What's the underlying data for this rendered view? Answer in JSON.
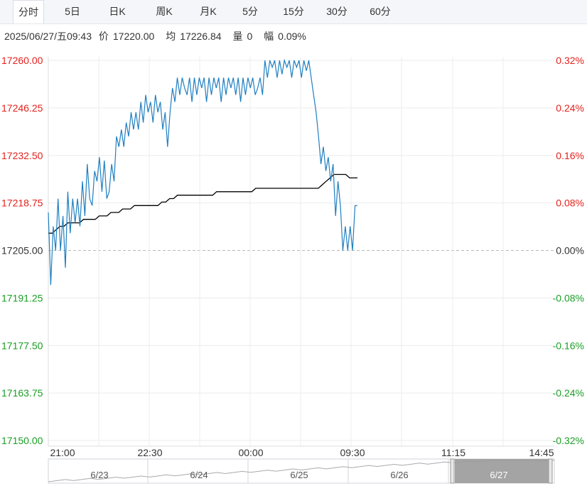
{
  "tabs": [
    {
      "label": "分时",
      "active": true
    },
    {
      "label": "5日",
      "active": false
    },
    {
      "label": "日K",
      "active": false
    },
    {
      "label": "周K",
      "active": false
    },
    {
      "label": "月K",
      "active": false
    },
    {
      "label": "5分",
      "active": false
    },
    {
      "label": "15分",
      "active": false
    },
    {
      "label": "30分",
      "active": false
    },
    {
      "label": "60分",
      "active": false
    }
  ],
  "info": {
    "datetime": "2025/06/27/五09:43",
    "price_label": "价",
    "price": "17220.00",
    "avg_label": "均",
    "avg": "17226.84",
    "vol_label": "量",
    "vol": "0",
    "chg_label": "幅",
    "chg": "0.09%"
  },
  "colors": {
    "up": "#e4211c",
    "down": "#1a9e24",
    "price_line": "#1f7fc1",
    "avg_line": "#000000",
    "grid": "#ececec"
  },
  "chart_data": {
    "type": "line",
    "prev_close": 17205.0,
    "ylim": [
      17150.0,
      17260.0
    ],
    "y_ticks_left": [
      "17260.00",
      "17246.25",
      "17232.50",
      "17218.75",
      "17205.00",
      "17191.25",
      "17177.50",
      "17163.75",
      "17150.00"
    ],
    "y_ticks_right": [
      "0.32%",
      "0.24%",
      "0.16%",
      "0.08%",
      "0.00%",
      "-0.08%",
      "-0.16%",
      "-0.24%",
      "-0.32%"
    ],
    "x_ticks": [
      "21:00",
      "22:30",
      "00:00",
      "09:30",
      "11:15",
      "14:45"
    ],
    "price": [
      17216,
      17195,
      17212,
      17205,
      17220,
      17205,
      17215,
      17200,
      17222,
      17210,
      17220,
      17213,
      17220,
      17212,
      17225,
      17215,
      17230,
      17220,
      17218,
      17228,
      17225,
      17232,
      17222,
      17231,
      17220,
      17222,
      17230,
      17225,
      17238,
      17235,
      17240,
      17235,
      17242,
      17238,
      17245,
      17240,
      17245,
      17240,
      17248,
      17242,
      17250,
      17245,
      17248,
      17242,
      17250,
      17245,
      17248,
      17240,
      17245,
      17235,
      17245,
      17252,
      17248,
      17255,
      17250,
      17255,
      17252,
      17250,
      17255,
      17248,
      17255,
      17250,
      17255,
      17252,
      17255,
      17248,
      17255,
      17250,
      17255,
      17252,
      17255,
      17248,
      17255,
      17250,
      17255,
      17252,
      17255,
      17250,
      17255,
      17248,
      17255,
      17250,
      17255,
      17252,
      17255,
      17250,
      17252,
      17255,
      17250,
      17260,
      17255,
      17260,
      17258,
      17260,
      17255,
      17260,
      17256,
      17260,
      17258,
      17260,
      17255,
      17260,
      17258,
      17260,
      17255,
      17260,
      17257,
      17260,
      17255,
      17250,
      17245,
      17238,
      17230,
      17235,
      17228,
      17232,
      17225,
      17230,
      17215,
      17225,
      17218,
      17205,
      17212,
      17205,
      17212,
      17205,
      17218,
      17218
    ],
    "average": [
      17210,
      17210,
      17211,
      17212,
      17212,
      17213,
      17213,
      17213,
      17213,
      17214,
      17214,
      17214,
      17214,
      17215,
      17215,
      17215,
      17216,
      17216,
      17216,
      17217,
      17217,
      17217,
      17218,
      17218,
      17218,
      17218,
      17218,
      17218,
      17218,
      17219,
      17219,
      17220,
      17220,
      17221,
      17221,
      17221,
      17221,
      17221,
      17221,
      17221,
      17221,
      17221,
      17221,
      17222,
      17222,
      17222,
      17222,
      17222,
      17222,
      17222,
      17222,
      17222,
      17222,
      17223,
      17223,
      17223,
      17223,
      17223,
      17223,
      17223,
      17223,
      17223,
      17223,
      17223,
      17223,
      17223,
      17223,
      17223,
      17223,
      17223,
      17224,
      17225,
      17226,
      17227,
      17227,
      17227,
      17227,
      17226,
      17226,
      17226
    ],
    "navigator": {
      "dates": [
        "6/23",
        "6/24",
        "6/25",
        "6/26",
        "6/27"
      ],
      "selected": "6/27"
    }
  }
}
